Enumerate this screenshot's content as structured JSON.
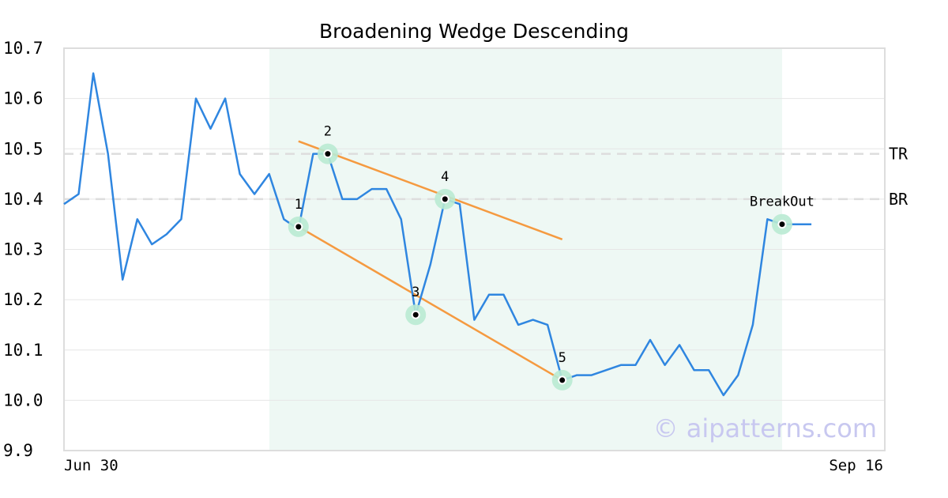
{
  "chart_data": {
    "type": "line",
    "title": "Broadening Wedge Descending",
    "ylim": [
      9.9,
      10.7
    ],
    "y_ticks": [
      "10.7",
      "10.6",
      "10.5",
      "10.4",
      "10.3",
      "10.2",
      "10.1",
      "10.0",
      "9.9"
    ],
    "x_tick_labels": [
      "Jun 30",
      "Sep 16"
    ],
    "grid": true,
    "series": [
      {
        "values": [
          10.39,
          10.41,
          10.65,
          10.49,
          10.24,
          10.36,
          10.31,
          10.33,
          10.36,
          10.6,
          10.54,
          10.6,
          10.45,
          10.41,
          10.45,
          10.36,
          10.34,
          10.49,
          10.49,
          10.4,
          10.4,
          10.42,
          10.42,
          10.36,
          10.17,
          10.27,
          10.4,
          10.39,
          10.16,
          10.21,
          10.21,
          10.15,
          10.16,
          10.15,
          10.04,
          10.05,
          10.05,
          10.06,
          10.07,
          10.07,
          10.12,
          10.07,
          10.11,
          10.06,
          10.06,
          10.01,
          10.05,
          10.15,
          10.36,
          10.35,
          10.35,
          10.35
        ]
      }
    ],
    "highlight_range": [
      14,
      49
    ],
    "pattern_points": [
      {
        "label": "1",
        "index": 16,
        "value": 10.345
      },
      {
        "label": "2",
        "index": 18,
        "value": 10.49
      },
      {
        "label": "3",
        "index": 24,
        "value": 10.17
      },
      {
        "label": "4",
        "index": 26,
        "value": 10.4
      },
      {
        "label": "5",
        "index": 34,
        "value": 10.04
      },
      {
        "label": "BreakOut",
        "index": 49,
        "value": 10.35
      }
    ],
    "trendlines": [
      {
        "from": [
          16,
          10.515
        ],
        "to": [
          34,
          10.32
        ]
      },
      {
        "from": [
          16,
          10.345
        ],
        "to": [
          34,
          10.04
        ]
      }
    ],
    "levels": [
      {
        "label": "TR",
        "value": 10.49
      },
      {
        "label": "BR",
        "value": 10.4
      }
    ],
    "colors": {
      "line": "#2f86e0",
      "trend": "#f59a40",
      "highlight": "#eef8f4",
      "marker_halo": "#b9ead3",
      "level": "#dddddd",
      "grid": "#e6e6e6",
      "frame": "#dddddd"
    }
  },
  "watermark": "© aipatterns.com"
}
